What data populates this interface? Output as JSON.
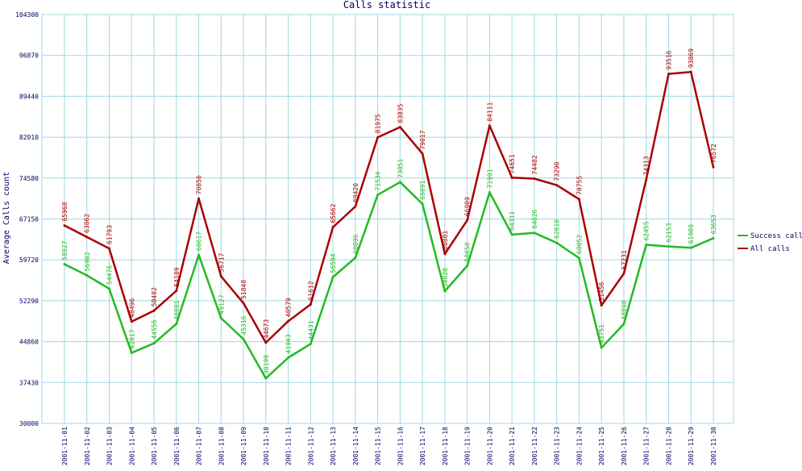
{
  "chart_data": {
    "type": "line",
    "title": "Calls statistic",
    "xlabel": "",
    "ylabel": "Average Calls count",
    "ylim": [
      30000,
      104300
    ],
    "yticks": [
      "30000",
      "37430",
      "44860",
      "52290",
      "59720",
      "67150",
      "74580",
      "82010",
      "89440",
      "96870",
      "104300"
    ],
    "grid": true,
    "legend_position": "right",
    "categories": [
      "2001-11-01",
      "2001-11-02",
      "2001-11-03",
      "2001-11-04",
      "2001-11-05",
      "2001-11-06",
      "2001-11-07",
      "2001-11-08",
      "2001-11-09",
      "2001-11-10",
      "2001-11-11",
      "2001-11-12",
      "2001-11-13",
      "2001-11-14",
      "2001-11-15",
      "2001-11-16",
      "2001-11-17",
      "2001-11-18",
      "2001-11-19",
      "2001-11-20",
      "2001-11-21",
      "2001-11-22",
      "2001-11-23",
      "2001-11-24",
      "2001-11-25",
      "2001-11-26",
      "2001-11-27",
      "2001-11-28",
      "2001-11-29",
      "2001-11-30"
    ],
    "series": [
      {
        "name": "Success calls",
        "color": "#22bb22",
        "values": [
          58927,
          56902,
          54476,
          42817,
          44556,
          48081,
          60617,
          49127,
          45316,
          38199,
          41943,
          44431,
          56594,
          60096,
          71534,
          73851,
          69891,
          54020,
          58650,
          71991,
          64311,
          64626,
          62810,
          60052,
          43751,
          48090,
          62455,
          62153,
          61909,
          63653
        ]
      },
      {
        "name": "All calls",
        "color": "#aa0000",
        "values": [
          65968,
          63862,
          61793,
          48496,
          50482,
          54109,
          70856,
          56717,
          51848,
          44673,
          48579,
          51612,
          65662,
          69420,
          81975,
          83835,
          79017,
          60801,
          66909,
          84111,
          74651,
          74482,
          73290,
          70755,
          51456,
          57231,
          74313,
          93516,
          93869,
          76572
        ]
      }
    ]
  }
}
